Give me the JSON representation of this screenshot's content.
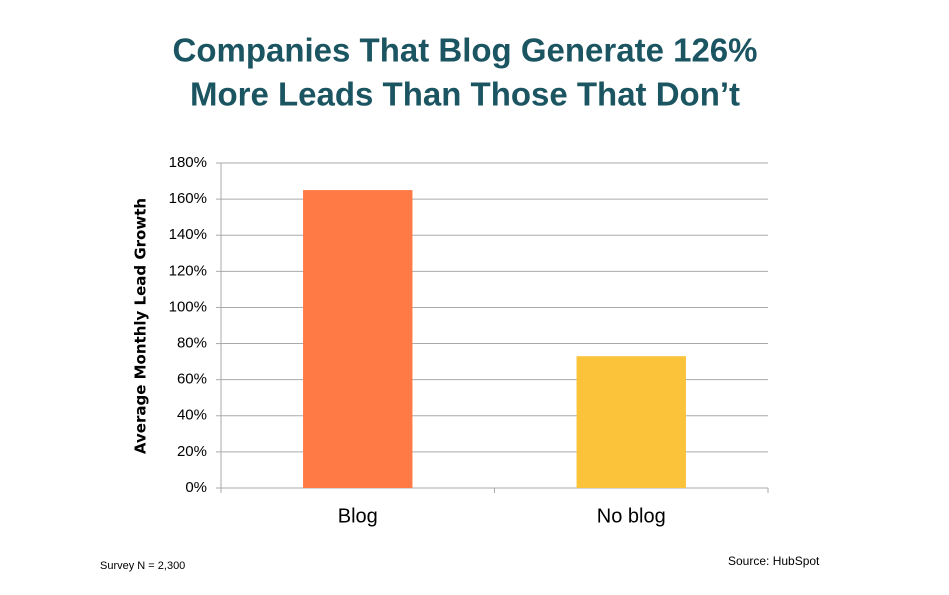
{
  "chart_data": {
    "type": "bar",
    "title": [
      "Companies That Blog Generate 126%",
      "More Leads Than Those That Don’t"
    ],
    "y_label": "Average Monthly Lead Growth",
    "categories": [
      "Blog",
      "No blog"
    ],
    "values": [
      165,
      73
    ],
    "colors": [
      "#ff7a45",
      "#fbc33a"
    ],
    "ylim": [
      0,
      180
    ],
    "yticks": [
      {
        "value": 0,
        "label": "0%"
      },
      {
        "value": 20,
        "label": "20%"
      },
      {
        "value": 40,
        "label": "40%"
      },
      {
        "value": 60,
        "label": "60%"
      },
      {
        "value": 80,
        "label": "80%"
      },
      {
        "value": 100,
        "label": "100%"
      },
      {
        "value": 120,
        "label": "120%"
      },
      {
        "value": 140,
        "label": "140%"
      },
      {
        "value": 160,
        "label": "160%"
      },
      {
        "value": 180,
        "label": "180%"
      }
    ],
    "grid": true,
    "note": "Survey N = 2,300",
    "source": "Source: HubSpot"
  }
}
